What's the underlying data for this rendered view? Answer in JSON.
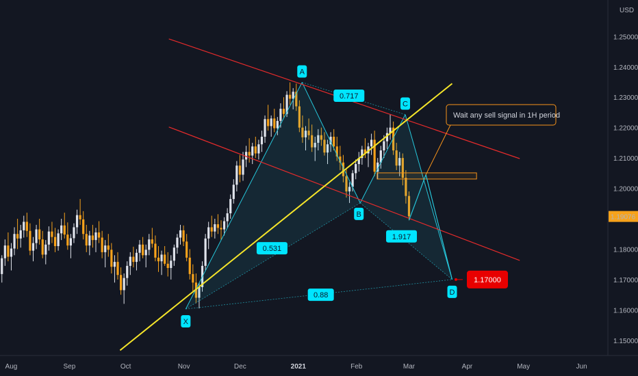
{
  "chart_data": {
    "type": "candlestick",
    "currency": "USD",
    "colors": {
      "background": "#131722",
      "up": "#e0e3eb",
      "down": "#f7a21b",
      "harmonic_line": "#26c6da",
      "harmonic_label": "#00e5ff",
      "channel": "#e52b2b",
      "trendline": "#f5e52a",
      "zone": "#f7931a",
      "target": "#e80000"
    },
    "y_axis": {
      "ylim": [
        1.145,
        1.262
      ],
      "ticks": [
        "1.15000",
        "1.16000",
        "1.17000",
        "1.18000",
        "1.19000",
        "1.20000",
        "1.21000",
        "1.22000",
        "1.23000",
        "1.24000",
        "1.25000"
      ],
      "tick_values": [
        1.15,
        1.16,
        1.17,
        1.18,
        1.19,
        1.2,
        1.21,
        1.22,
        1.23,
        1.24,
        1.25
      ]
    },
    "x_axis": {
      "labels": [
        "Aug",
        "Sep",
        "Oct",
        "Nov",
        "Dec",
        "2021",
        "Feb",
        "Mar",
        "Apr",
        "May",
        "Jun"
      ],
      "bold_label": "2021",
      "label_days": [
        0,
        31,
        61,
        92,
        122,
        153,
        184,
        212,
        243,
        273,
        304
      ],
      "xlim": [
        -6,
        318
      ]
    },
    "last_price": {
      "label": "1.19076",
      "value": 1.19076
    },
    "target": {
      "label": "1.17000",
      "value": 1.17,
      "day": 237
    },
    "pattern": {
      "points": [
        {
          "name": "X",
          "day": 93,
          "price": 1.1603
        },
        {
          "name": "A",
          "day": 155,
          "price": 1.2349
        },
        {
          "name": "B",
          "day": 186,
          "price": 1.1952
        },
        {
          "name": "C",
          "day": 210,
          "price": 1.2243
        },
        {
          "name": "D",
          "day": 235,
          "price": 1.17
        }
      ],
      "ratios": [
        {
          "label": "0.717",
          "day": 180,
          "price": 1.2305
        },
        {
          "label": "0.531",
          "day": 139,
          "price": 1.1803
        },
        {
          "label": "1.917",
          "day": 208,
          "price": 1.1842
        },
        {
          "label": "0.88",
          "day": 165,
          "price": 1.165
        }
      ]
    },
    "channel_lines": [
      {
        "from": {
          "day": 84,
          "price": 1.2492
        },
        "to": {
          "day": 271,
          "price": 1.2098
        }
      },
      {
        "from": {
          "day": 84,
          "price": 1.2202
        },
        "to": {
          "day": 271,
          "price": 1.1763
        }
      }
    ],
    "trendline": {
      "from": {
        "day": 58,
        "price": 1.1467
      },
      "to": {
        "day": 235,
        "price": 1.2345
      }
    },
    "zone": {
      "from_day": 195,
      "to_day": 248,
      "top": 1.2042,
      "bottom": 1.2033
    },
    "projection": [
      {
        "day": 212,
        "price": 1.1895
      },
      {
        "day": 221,
        "price": 1.2045
      },
      {
        "day": 235,
        "price": 1.17
      }
    ],
    "annotation": {
      "text": "Wait any sell signal in 1H period",
      "anchor": {
        "day": 221,
        "price": 1.2045
      }
    },
    "candles": [
      [
        1.1718,
        1.178,
        1.169,
        1.177
      ],
      [
        1.177,
        1.1832,
        1.1745,
        1.1812
      ],
      [
        1.1812,
        1.1855,
        1.176,
        1.1775
      ],
      [
        1.1775,
        1.182,
        1.173,
        1.1802
      ],
      [
        1.1802,
        1.1872,
        1.178,
        1.185
      ],
      [
        1.185,
        1.19,
        1.18,
        1.1835
      ],
      [
        1.1835,
        1.188,
        1.1805,
        1.1862
      ],
      [
        1.1862,
        1.191,
        1.1838,
        1.189
      ],
      [
        1.189,
        1.192,
        1.184,
        1.186
      ],
      [
        1.186,
        1.1885,
        1.178,
        1.1795
      ],
      [
        1.1795,
        1.184,
        1.176,
        1.182
      ],
      [
        1.182,
        1.188,
        1.18,
        1.1865
      ],
      [
        1.1865,
        1.19,
        1.1815,
        1.1832
      ],
      [
        1.1832,
        1.186,
        1.177,
        1.1782
      ],
      [
        1.1782,
        1.183,
        1.175,
        1.1815
      ],
      [
        1.1815,
        1.1875,
        1.1795,
        1.1858
      ],
      [
        1.1858,
        1.189,
        1.182,
        1.184
      ],
      [
        1.184,
        1.187,
        1.179,
        1.181
      ],
      [
        1.181,
        1.1865,
        1.1795,
        1.1852
      ],
      [
        1.1852,
        1.19,
        1.183,
        1.1878
      ],
      [
        1.1878,
        1.192,
        1.1835,
        1.1848
      ],
      [
        1.1848,
        1.1888,
        1.1798,
        1.1812
      ],
      [
        1.1812,
        1.185,
        1.177,
        1.1836
      ],
      [
        1.1836,
        1.1885,
        1.182,
        1.1872
      ],
      [
        1.1872,
        1.193,
        1.185,
        1.1912
      ],
      [
        1.1912,
        1.1965,
        1.188,
        1.1898
      ],
      [
        1.1898,
        1.1925,
        1.1832,
        1.185
      ],
      [
        1.185,
        1.188,
        1.179,
        1.1812
      ],
      [
        1.1812,
        1.186,
        1.178,
        1.1845
      ],
      [
        1.1845,
        1.188,
        1.1805,
        1.183
      ],
      [
        1.183,
        1.187,
        1.179,
        1.1855
      ],
      [
        1.1855,
        1.1892,
        1.182,
        1.1838
      ],
      [
        1.1838,
        1.186,
        1.177,
        1.179
      ],
      [
        1.179,
        1.183,
        1.174,
        1.1812
      ],
      [
        1.1812,
        1.185,
        1.1775,
        1.1798
      ],
      [
        1.1798,
        1.182,
        1.172,
        1.1742
      ],
      [
        1.1742,
        1.178,
        1.169,
        1.1758
      ],
      [
        1.1758,
        1.179,
        1.17,
        1.1715
      ],
      [
        1.1715,
        1.174,
        1.165,
        1.1665
      ],
      [
        1.1665,
        1.172,
        1.162,
        1.1705
      ],
      [
        1.1705,
        1.176,
        1.168,
        1.1745
      ],
      [
        1.1745,
        1.179,
        1.1715,
        1.1775
      ],
      [
        1.1775,
        1.1808,
        1.174,
        1.1758
      ],
      [
        1.1758,
        1.18,
        1.173,
        1.1788
      ],
      [
        1.1788,
        1.183,
        1.176,
        1.1815
      ],
      [
        1.1815,
        1.184,
        1.177,
        1.178
      ],
      [
        1.178,
        1.1815,
        1.174,
        1.1798
      ],
      [
        1.1798,
        1.185,
        1.178,
        1.1832
      ],
      [
        1.1832,
        1.187,
        1.1805,
        1.1818
      ],
      [
        1.1818,
        1.1845,
        1.176,
        1.1772
      ],
      [
        1.1772,
        1.181,
        1.1725,
        1.176
      ],
      [
        1.176,
        1.1795,
        1.1715,
        1.1782
      ],
      [
        1.1782,
        1.181,
        1.1745,
        1.1752
      ],
      [
        1.1752,
        1.179,
        1.171,
        1.1738
      ],
      [
        1.1738,
        1.178,
        1.17,
        1.1762
      ],
      [
        1.1762,
        1.1815,
        1.1745,
        1.1805
      ],
      [
        1.1805,
        1.185,
        1.1785,
        1.1838
      ],
      [
        1.1838,
        1.188,
        1.1815,
        1.1862
      ],
      [
        1.1862,
        1.1878,
        1.181,
        1.1825
      ],
      [
        1.1825,
        1.185,
        1.176,
        1.1772
      ],
      [
        1.1772,
        1.18,
        1.17,
        1.1718
      ],
      [
        1.1718,
        1.175,
        1.166,
        1.169
      ],
      [
        1.169,
        1.172,
        1.1622,
        1.164
      ],
      [
        1.164,
        1.169,
        1.1605,
        1.1675
      ],
      [
        1.1675,
        1.176,
        1.166,
        1.1745
      ],
      [
        1.1745,
        1.185,
        1.173,
        1.1835
      ],
      [
        1.1835,
        1.189,
        1.18,
        1.1872
      ],
      [
        1.1872,
        1.191,
        1.184,
        1.1858
      ],
      [
        1.1858,
        1.19,
        1.1835,
        1.1882
      ],
      [
        1.1882,
        1.1915,
        1.185,
        1.187
      ],
      [
        1.187,
        1.1895,
        1.183,
        1.1865
      ],
      [
        1.1865,
        1.1905,
        1.1845,
        1.1892
      ],
      [
        1.1892,
        1.1935,
        1.187,
        1.1918
      ],
      [
        1.1918,
        1.198,
        1.19,
        1.1965
      ],
      [
        1.1965,
        1.203,
        1.195,
        1.2012
      ],
      [
        1.2012,
        1.209,
        1.199,
        1.2075
      ],
      [
        1.2075,
        1.211,
        1.202,
        1.2045
      ],
      [
        1.2045,
        1.212,
        1.2025,
        1.2095
      ],
      [
        1.2095,
        1.214,
        1.207,
        1.212
      ],
      [
        1.212,
        1.2165,
        1.2085,
        1.2108
      ],
      [
        1.2108,
        1.215,
        1.208,
        1.2138
      ],
      [
        1.2138,
        1.217,
        1.21,
        1.2115
      ],
      [
        1.2115,
        1.216,
        1.2095,
        1.2145
      ],
      [
        1.2145,
        1.219,
        1.212,
        1.217
      ],
      [
        1.217,
        1.224,
        1.215,
        1.2228
      ],
      [
        1.2228,
        1.2275,
        1.219,
        1.2205
      ],
      [
        1.2205,
        1.224,
        1.217,
        1.223
      ],
      [
        1.223,
        1.2262,
        1.2185,
        1.2198
      ],
      [
        1.2198,
        1.2235,
        1.2175,
        1.2222
      ],
      [
        1.2222,
        1.228,
        1.22,
        1.2262
      ],
      [
        1.2262,
        1.23,
        1.223,
        1.2245
      ],
      [
        1.2245,
        1.232,
        1.2235,
        1.2308
      ],
      [
        1.2308,
        1.2349,
        1.2275,
        1.2295
      ],
      [
        1.2295,
        1.233,
        1.226,
        1.2318
      ],
      [
        1.2318,
        1.2345,
        1.2255,
        1.227
      ],
      [
        1.227,
        1.229,
        1.2185,
        1.22
      ],
      [
        1.22,
        1.224,
        1.215,
        1.2168
      ],
      [
        1.2168,
        1.2205,
        1.2125,
        1.219
      ],
      [
        1.219,
        1.223,
        1.216,
        1.2175
      ],
      [
        1.2175,
        1.221,
        1.212,
        1.2135
      ],
      [
        1.2135,
        1.217,
        1.209,
        1.215
      ],
      [
        1.215,
        1.2195,
        1.2125,
        1.2175
      ],
      [
        1.2175,
        1.22,
        1.214,
        1.216
      ],
      [
        1.216,
        1.2185,
        1.2108,
        1.2118
      ],
      [
        1.2118,
        1.216,
        1.208,
        1.2145
      ],
      [
        1.2145,
        1.2185,
        1.212,
        1.217
      ],
      [
        1.217,
        1.2195,
        1.2125,
        1.2138
      ],
      [
        1.2138,
        1.217,
        1.209,
        1.2105
      ],
      [
        1.2105,
        1.214,
        1.206,
        1.2085
      ],
      [
        1.2085,
        1.211,
        1.202,
        1.204
      ],
      [
        1.204,
        1.2065,
        1.197,
        1.199
      ],
      [
        1.199,
        1.202,
        1.1952,
        1.2005
      ],
      [
        1.2005,
        1.206,
        1.199,
        1.205
      ],
      [
        1.205,
        1.2095,
        1.203,
        1.208
      ],
      [
        1.208,
        1.212,
        1.2055,
        1.21
      ],
      [
        1.21,
        1.214,
        1.2078,
        1.2128
      ],
      [
        1.2128,
        1.2165,
        1.21,
        1.2115
      ],
      [
        1.2115,
        1.215,
        1.207,
        1.2138
      ],
      [
        1.2138,
        1.218,
        1.211,
        1.216
      ],
      [
        1.216,
        1.219,
        1.204,
        1.2055
      ],
      [
        1.2055,
        1.21,
        1.203,
        1.2085
      ],
      [
        1.2085,
        1.214,
        1.2065,
        1.2125
      ],
      [
        1.2125,
        1.2175,
        1.21,
        1.2155
      ],
      [
        1.2155,
        1.22,
        1.213,
        1.2182
      ],
      [
        1.2182,
        1.2243,
        1.216,
        1.22
      ],
      [
        1.22,
        1.222,
        1.211,
        1.2125
      ],
      [
        1.2125,
        1.215,
        1.206,
        1.2075
      ],
      [
        1.2075,
        1.212,
        1.204,
        1.21
      ],
      [
        1.21,
        1.2115,
        1.201,
        1.2035
      ],
      [
        1.2035,
        1.206,
        1.195,
        1.1975
      ],
      [
        1.1975,
        1.199,
        1.1895,
        1.1908
      ]
    ]
  }
}
